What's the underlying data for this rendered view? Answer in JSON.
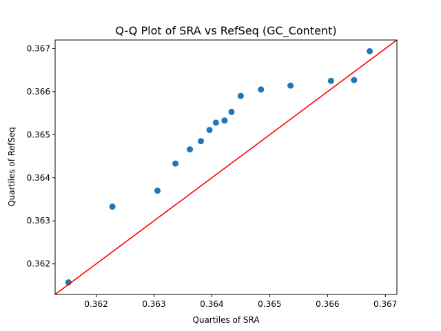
{
  "chart_data": {
    "type": "scatter",
    "title": "Q-Q Plot of SRA vs RefSeq (GC_Content)",
    "xlabel": "Quartiles of SRA",
    "ylabel": "Quartiles of RefSeq",
    "xlim": [
      0.36129,
      0.3672
    ],
    "ylim": [
      0.36129,
      0.3672
    ],
    "xticks": [
      0.362,
      0.363,
      0.364,
      0.365,
      0.366,
      0.367
    ],
    "yticks": [
      0.362,
      0.363,
      0.364,
      0.365,
      0.366,
      0.367
    ],
    "tick_format_decimals": 3,
    "grid": false,
    "point_color": "#1f77b4",
    "reference_line_color": "#ff0000",
    "points": [
      {
        "x": 0.36152,
        "y": 0.36157
      },
      {
        "x": 0.36228,
        "y": 0.36333
      },
      {
        "x": 0.36306,
        "y": 0.3637
      },
      {
        "x": 0.36337,
        "y": 0.36433
      },
      {
        "x": 0.36362,
        "y": 0.36466
      },
      {
        "x": 0.36381,
        "y": 0.36485
      },
      {
        "x": 0.36396,
        "y": 0.36511
      },
      {
        "x": 0.36407,
        "y": 0.36528
      },
      {
        "x": 0.36422,
        "y": 0.36533
      },
      {
        "x": 0.36434,
        "y": 0.36553
      },
      {
        "x": 0.3645,
        "y": 0.3659
      },
      {
        "x": 0.36485,
        "y": 0.36605
      },
      {
        "x": 0.36536,
        "y": 0.36614
      },
      {
        "x": 0.36606,
        "y": 0.36625
      },
      {
        "x": 0.36646,
        "y": 0.36627
      },
      {
        "x": 0.36673,
        "y": 0.36694
      }
    ]
  }
}
